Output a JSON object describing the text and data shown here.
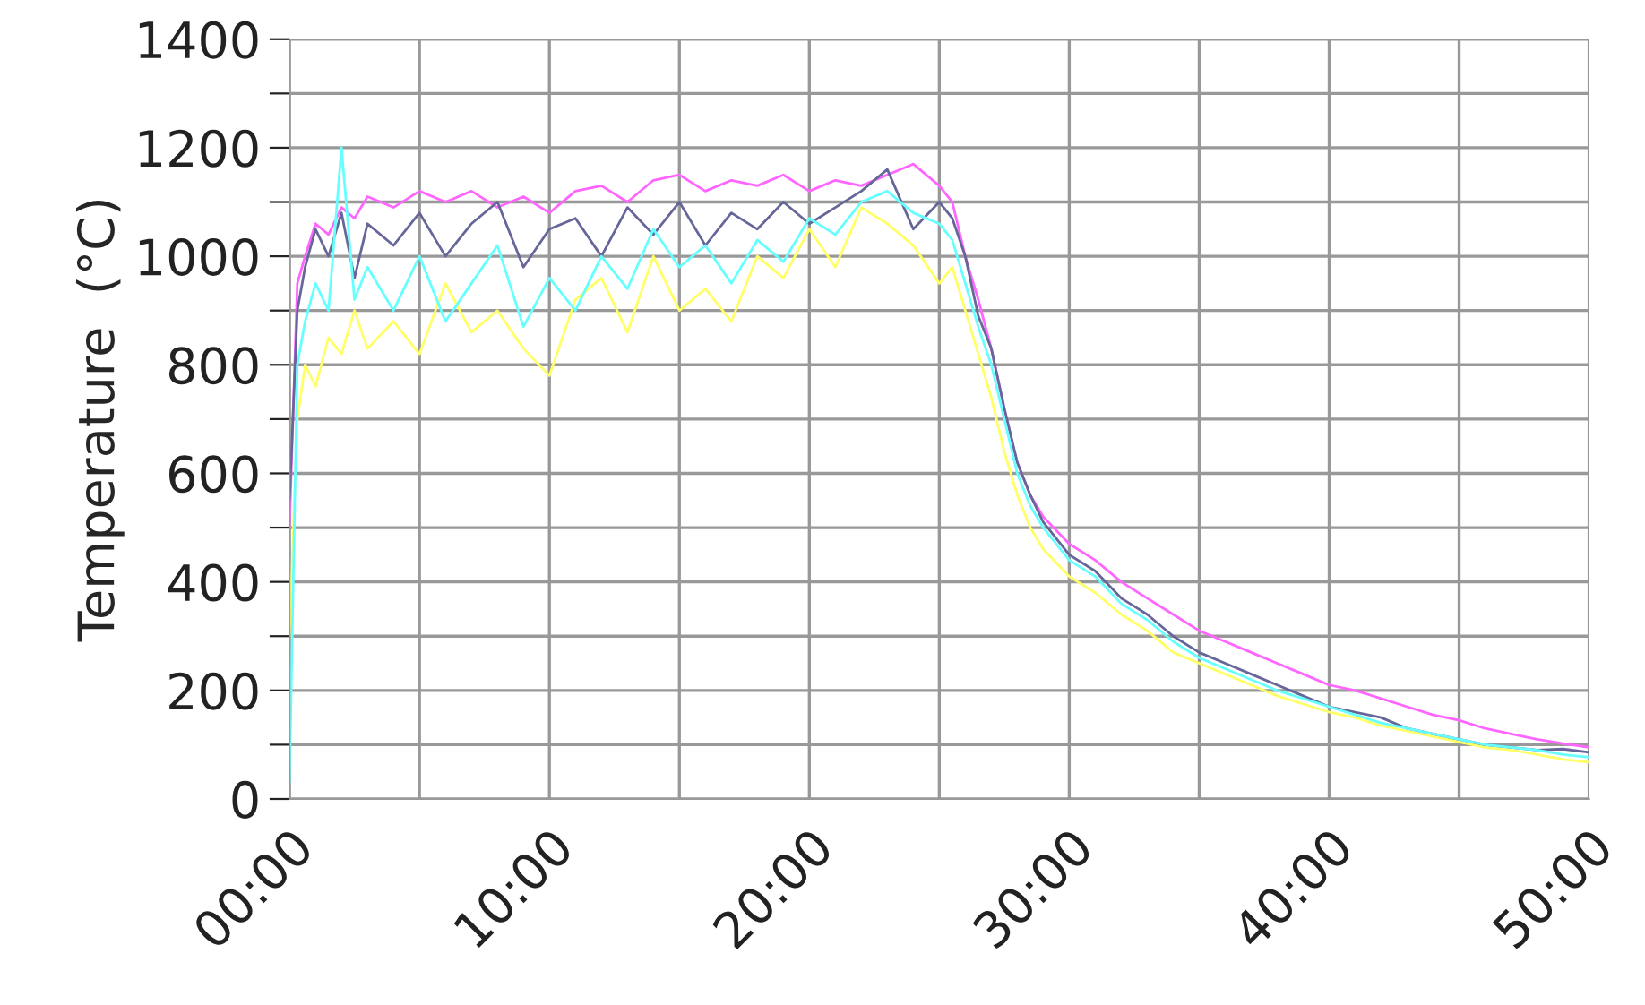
{
  "chart_data": {
    "type": "line",
    "ylabel": "Temperature  (°C)",
    "x": [
      0,
      0.3,
      0.6,
      1,
      1.5,
      2,
      2.5,
      3,
      4,
      5,
      6,
      7,
      8,
      9,
      10,
      11,
      12,
      13,
      14,
      15,
      16,
      17,
      18,
      19,
      20,
      21,
      22,
      23,
      24,
      25,
      25.5,
      26,
      26.5,
      27,
      27.5,
      28,
      28.5,
      29,
      30,
      31,
      32,
      33,
      34,
      35,
      36,
      37,
      38,
      39,
      40,
      41,
      42,
      43,
      44,
      45,
      46,
      47,
      48,
      49,
      50
    ],
    "series": [
      {
        "color": "#ffff66",
        "values": [
          300,
          700,
          800,
          760,
          850,
          820,
          900,
          830,
          880,
          820,
          950,
          860,
          900,
          830,
          780,
          920,
          960,
          860,
          1000,
          900,
          940,
          880,
          1000,
          960,
          1050,
          980,
          1090,
          1060,
          1020,
          950,
          980,
          900,
          820,
          740,
          640,
          560,
          500,
          460,
          410,
          380,
          340,
          310,
          270,
          250,
          230,
          210,
          190,
          175,
          160,
          150,
          135,
          125,
          115,
          105,
          95,
          90,
          82,
          73,
          68
        ]
      },
      {
        "color": "#ff66ff",
        "values": [
          500,
          950,
          1000,
          1060,
          1040,
          1090,
          1070,
          1110,
          1090,
          1120,
          1100,
          1120,
          1090,
          1110,
          1080,
          1120,
          1130,
          1100,
          1140,
          1150,
          1120,
          1140,
          1130,
          1150,
          1120,
          1140,
          1130,
          1150,
          1170,
          1130,
          1100,
          1000,
          920,
          830,
          720,
          620,
          560,
          520,
          470,
          440,
          400,
          370,
          340,
          310,
          290,
          270,
          250,
          230,
          210,
          200,
          185,
          170,
          155,
          145,
          130,
          120,
          110,
          102,
          95
        ]
      },
      {
        "color": "#666699",
        "values": [
          550,
          900,
          980,
          1050,
          1000,
          1080,
          960,
          1060,
          1020,
          1080,
          1000,
          1060,
          1100,
          980,
          1050,
          1070,
          1000,
          1090,
          1040,
          1100,
          1020,
          1080,
          1050,
          1100,
          1060,
          1090,
          1120,
          1160,
          1050,
          1100,
          1070,
          1000,
          890,
          830,
          720,
          620,
          560,
          510,
          450,
          420,
          370,
          340,
          300,
          270,
          250,
          230,
          210,
          190,
          170,
          160,
          150,
          130,
          120,
          110,
          100,
          95,
          90,
          92,
          86
        ]
      },
      {
        "color": "#66ffff",
        "values": [
          30,
          800,
          880,
          950,
          900,
          1200,
          920,
          980,
          900,
          1000,
          880,
          950,
          1020,
          870,
          960,
          900,
          1000,
          940,
          1050,
          980,
          1020,
          950,
          1030,
          990,
          1070,
          1040,
          1100,
          1120,
          1080,
          1060,
          1030,
          950,
          870,
          800,
          700,
          600,
          540,
          500,
          440,
          410,
          360,
          330,
          290,
          260,
          240,
          220,
          200,
          185,
          170,
          155,
          140,
          130,
          120,
          110,
          100,
          95,
          90,
          82,
          77
        ]
      }
    ],
    "xlim": [
      0,
      50
    ],
    "xticks": [
      {
        "value": 0,
        "label": "00:00"
      },
      {
        "value": 5,
        "label": null
      },
      {
        "value": 10,
        "label": "10:00"
      },
      {
        "value": 15,
        "label": null
      },
      {
        "value": 20,
        "label": "20:00"
      },
      {
        "value": 25,
        "label": null
      },
      {
        "value": 30,
        "label": "30:00"
      },
      {
        "value": 35,
        "label": null
      },
      {
        "value": 40,
        "label": "40:00"
      },
      {
        "value": 45,
        "label": null
      },
      {
        "value": 50,
        "label": "50:00"
      }
    ],
    "ylim": [
      0,
      1400
    ],
    "yticks": [
      0,
      {
        "value": 100,
        "label": null
      },
      200,
      {
        "value": 300,
        "label": null
      },
      400,
      {
        "value": 500,
        "label": null
      },
      600,
      {
        "value": 700,
        "label": null
      },
      800,
      {
        "value": 900,
        "label": null
      },
      1000,
      {
        "value": 1100,
        "label": null
      },
      1200,
      {
        "value": 1300,
        "label": null
      },
      1400
    ],
    "grid": true,
    "legend": false,
    "marker": "none",
    "line_style": "solid"
  }
}
